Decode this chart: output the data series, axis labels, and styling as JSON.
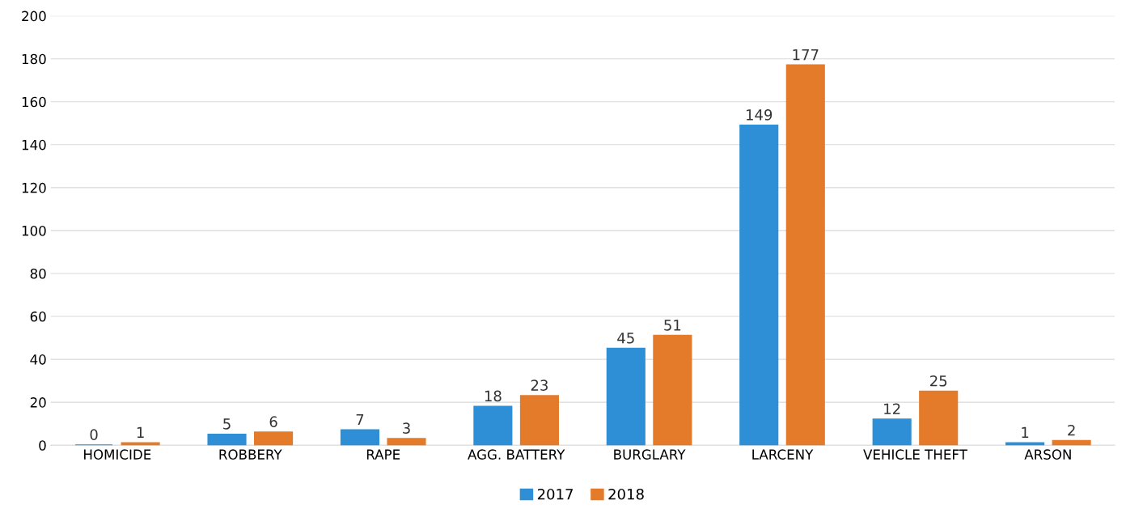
{
  "chart_data": {
    "type": "bar",
    "categories": [
      "HOMICIDE",
      "ROBBERY",
      "RAPE",
      "AGG. BATTERY",
      "BURGLARY",
      "LARCENY",
      "VEHICLE THEFT",
      "ARSON"
    ],
    "series": [
      {
        "name": "2017",
        "color": "#2e8fd6",
        "values": [
          0,
          5,
          7,
          18,
          45,
          149,
          12,
          1
        ]
      },
      {
        "name": "2018",
        "color": "#e37b2b",
        "values": [
          1,
          6,
          3,
          23,
          51,
          177,
          25,
          2
        ]
      }
    ],
    "ylim": [
      0,
      200
    ],
    "yticks": [
      0,
      20,
      40,
      60,
      80,
      100,
      120,
      140,
      160,
      180,
      200
    ],
    "grid": "y",
    "legend": "bottom",
    "data_labels": true
  }
}
